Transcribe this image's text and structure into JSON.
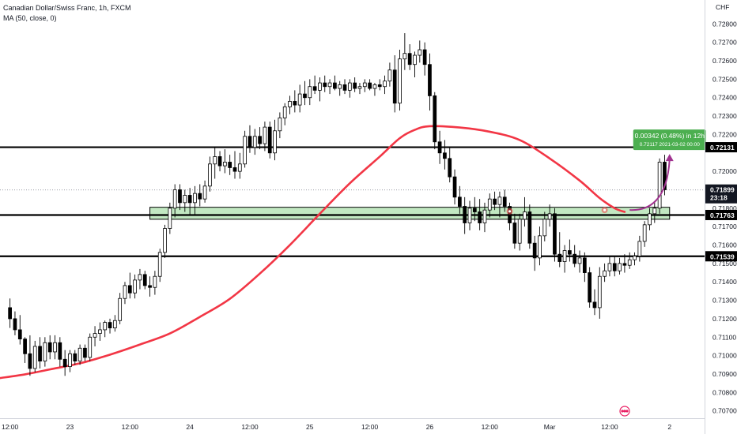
{
  "header": {
    "symbol_line": "Canadian Dollar/Swiss Franc, 1h, FXCM",
    "indicator_line": "MA (50, close, 0)"
  },
  "chart_data": {
    "type": "candlestick",
    "currency_label": "CHF",
    "ylim": [
      0.7066,
      0.7293
    ],
    "y_ticks": [
      "0.72800",
      "0.72700",
      "0.72600",
      "0.72500",
      "0.72400",
      "0.72300",
      "0.72200",
      "0.72000",
      "0.71800",
      "0.71700",
      "0.71600",
      "0.71500",
      "0.71400",
      "0.71300",
      "0.71200",
      "0.71100",
      "0.71000",
      "0.70900",
      "0.70800",
      "0.70700"
    ],
    "x_ticks": [
      {
        "label": "12:00",
        "x": 0
      },
      {
        "label": "23",
        "x": 12
      },
      {
        "label": "12:00",
        "x": 24
      },
      {
        "label": "24",
        "x": 36
      },
      {
        "label": "12:00",
        "x": 48
      },
      {
        "label": "25",
        "x": 60
      },
      {
        "label": "12:00",
        "x": 72
      },
      {
        "label": "26",
        "x": 84
      },
      {
        "label": "12:00",
        "x": 96
      },
      {
        "label": "Mar",
        "x": 108
      },
      {
        "label": "12:00",
        "x": 120
      },
      {
        "label": "2",
        "x": 132
      }
    ],
    "x_range": [
      -2,
      139
    ],
    "candles": [
      [
        0.7126,
        0.7131,
        0.7115,
        0.712
      ],
      [
        0.712,
        0.7124,
        0.7111,
        0.7114
      ],
      [
        0.7114,
        0.7122,
        0.7106,
        0.7109
      ],
      [
        0.7109,
        0.711,
        0.7096,
        0.7101
      ],
      [
        0.7101,
        0.7111,
        0.7089,
        0.7093
      ],
      [
        0.7093,
        0.7108,
        0.7091,
        0.7105
      ],
      [
        0.7105,
        0.711,
        0.7093,
        0.7097
      ],
      [
        0.7097,
        0.711,
        0.7094,
        0.7107
      ],
      [
        0.7107,
        0.7111,
        0.7098,
        0.7102
      ],
      [
        0.7102,
        0.7111,
        0.7098,
        0.7107
      ],
      [
        0.7107,
        0.711,
        0.7094,
        0.7098
      ],
      [
        0.7098,
        0.7103,
        0.7089,
        0.7094
      ],
      [
        0.7094,
        0.7103,
        0.7091,
        0.7101
      ],
      [
        0.7101,
        0.7103,
        0.7095,
        0.7097
      ],
      [
        0.7097,
        0.7106,
        0.7095,
        0.7104
      ],
      [
        0.7104,
        0.7106,
        0.7097,
        0.7099
      ],
      [
        0.7099,
        0.7112,
        0.7097,
        0.711
      ],
      [
        0.711,
        0.7116,
        0.7105,
        0.7112
      ],
      [
        0.7112,
        0.7118,
        0.7108,
        0.7114
      ],
      [
        0.7114,
        0.7119,
        0.711,
        0.7118
      ],
      [
        0.7118,
        0.712,
        0.7112,
        0.7115
      ],
      [
        0.7115,
        0.7122,
        0.7113,
        0.7119
      ],
      [
        0.7119,
        0.7134,
        0.7117,
        0.7131
      ],
      [
        0.7131,
        0.714,
        0.7128,
        0.7138
      ],
      [
        0.7138,
        0.7145,
        0.7131,
        0.7134
      ],
      [
        0.7134,
        0.7144,
        0.7131,
        0.7141
      ],
      [
        0.7141,
        0.7147,
        0.7136,
        0.7144
      ],
      [
        0.7144,
        0.7146,
        0.7136,
        0.7138
      ],
      [
        0.7138,
        0.7143,
        0.7132,
        0.7137
      ],
      [
        0.7137,
        0.7146,
        0.7133,
        0.7143
      ],
      [
        0.7143,
        0.7158,
        0.714,
        0.7156
      ],
      [
        0.7156,
        0.7171,
        0.7153,
        0.7169
      ],
      [
        0.7169,
        0.7183,
        0.7166,
        0.718
      ],
      [
        0.718,
        0.7193,
        0.7175,
        0.719
      ],
      [
        0.719,
        0.7193,
        0.7179,
        0.7183
      ],
      [
        0.7183,
        0.719,
        0.7178,
        0.7187
      ],
      [
        0.7187,
        0.7191,
        0.7176,
        0.7183
      ],
      [
        0.7183,
        0.7192,
        0.7176,
        0.7188
      ],
      [
        0.7188,
        0.7193,
        0.7181,
        0.7185
      ],
      [
        0.7185,
        0.7195,
        0.7183,
        0.7192
      ],
      [
        0.7192,
        0.7208,
        0.7189,
        0.7204
      ],
      [
        0.7204,
        0.7213,
        0.7196,
        0.7208
      ],
      [
        0.7208,
        0.7211,
        0.72,
        0.7203
      ],
      [
        0.7203,
        0.7212,
        0.7199,
        0.7205
      ],
      [
        0.7205,
        0.7209,
        0.7198,
        0.7202
      ],
      [
        0.7202,
        0.7211,
        0.7196,
        0.72
      ],
      [
        0.72,
        0.721,
        0.7196,
        0.7204
      ],
      [
        0.7204,
        0.7222,
        0.7202,
        0.7219
      ],
      [
        0.7219,
        0.7225,
        0.721,
        0.7213
      ],
      [
        0.7213,
        0.7223,
        0.7209,
        0.7219
      ],
      [
        0.7219,
        0.7224,
        0.7212,
        0.7215
      ],
      [
        0.7215,
        0.7227,
        0.7211,
        0.7224
      ],
      [
        0.7224,
        0.7227,
        0.7207,
        0.721
      ],
      [
        0.721,
        0.7228,
        0.7206,
        0.7222
      ],
      [
        0.7222,
        0.7232,
        0.7218,
        0.7229
      ],
      [
        0.7229,
        0.7237,
        0.7225,
        0.7235
      ],
      [
        0.7235,
        0.7241,
        0.7231,
        0.7238
      ],
      [
        0.7238,
        0.7244,
        0.7232,
        0.7236
      ],
      [
        0.7236,
        0.7247,
        0.7232,
        0.7242
      ],
      [
        0.7242,
        0.7249,
        0.7236,
        0.724
      ],
      [
        0.724,
        0.725,
        0.7236,
        0.7246
      ],
      [
        0.7246,
        0.7252,
        0.7242,
        0.7244
      ],
      [
        0.7244,
        0.7251,
        0.7238,
        0.7248
      ],
      [
        0.7248,
        0.7252,
        0.7243,
        0.7246
      ],
      [
        0.7246,
        0.725,
        0.7242,
        0.7248
      ],
      [
        0.7248,
        0.7252,
        0.7244,
        0.7245
      ],
      [
        0.7245,
        0.7249,
        0.7241,
        0.7247
      ],
      [
        0.7247,
        0.725,
        0.7242,
        0.7244
      ],
      [
        0.7244,
        0.725,
        0.724,
        0.7248
      ],
      [
        0.7248,
        0.7251,
        0.7243,
        0.7245
      ],
      [
        0.7245,
        0.7248,
        0.7242,
        0.7246
      ],
      [
        0.7246,
        0.725,
        0.7243,
        0.7248
      ],
      [
        0.7248,
        0.725,
        0.7244,
        0.7245
      ],
      [
        0.7245,
        0.7248,
        0.7241,
        0.7247
      ],
      [
        0.7247,
        0.725,
        0.7244,
        0.7246
      ],
      [
        0.7246,
        0.7252,
        0.7242,
        0.7249
      ],
      [
        0.7249,
        0.7259,
        0.7246,
        0.7255
      ],
      [
        0.7255,
        0.7263,
        0.7232,
        0.7237
      ],
      [
        0.7237,
        0.7266,
        0.7233,
        0.7261
      ],
      [
        0.7261,
        0.7275,
        0.7255,
        0.7264
      ],
      [
        0.7264,
        0.7269,
        0.7255,
        0.7258
      ],
      [
        0.7258,
        0.7265,
        0.7251,
        0.7263
      ],
      [
        0.7263,
        0.7271,
        0.7259,
        0.7266
      ],
      [
        0.7266,
        0.727,
        0.7252,
        0.7258
      ],
      [
        0.7258,
        0.7264,
        0.7233,
        0.7241
      ],
      [
        0.7241,
        0.7243,
        0.7212,
        0.7216
      ],
      [
        0.7216,
        0.7222,
        0.7204,
        0.721
      ],
      [
        0.721,
        0.7217,
        0.7201,
        0.7207
      ],
      [
        0.7207,
        0.7213,
        0.7194,
        0.7197
      ],
      [
        0.7197,
        0.7201,
        0.7182,
        0.7186
      ],
      [
        0.7186,
        0.7192,
        0.7177,
        0.7181
      ],
      [
        0.7181,
        0.7186,
        0.7166,
        0.7172
      ],
      [
        0.7172,
        0.7184,
        0.7168,
        0.718
      ],
      [
        0.718,
        0.7186,
        0.7173,
        0.7178
      ],
      [
        0.7178,
        0.7185,
        0.7168,
        0.7172
      ],
      [
        0.7172,
        0.7183,
        0.7167,
        0.7179
      ],
      [
        0.7179,
        0.7188,
        0.7175,
        0.7185
      ],
      [
        0.7185,
        0.7189,
        0.7179,
        0.7182
      ],
      [
        0.7182,
        0.7189,
        0.7175,
        0.7186
      ],
      [
        0.7186,
        0.719,
        0.7178,
        0.7181
      ],
      [
        0.7181,
        0.7183,
        0.7168,
        0.7172
      ],
      [
        0.7172,
        0.7177,
        0.7158,
        0.7161
      ],
      [
        0.7161,
        0.7177,
        0.7157,
        0.7174
      ],
      [
        0.7174,
        0.7186,
        0.717,
        0.7178
      ],
      [
        0.7178,
        0.7182,
        0.7158,
        0.7161
      ],
      [
        0.7161,
        0.7165,
        0.7146,
        0.7153
      ],
      [
        0.7153,
        0.717,
        0.7149,
        0.7165
      ],
      [
        0.7165,
        0.7178,
        0.7162,
        0.7174
      ],
      [
        0.7174,
        0.7182,
        0.717,
        0.7177
      ],
      [
        0.7177,
        0.718,
        0.7151,
        0.7155
      ],
      [
        0.7155,
        0.7167,
        0.7148,
        0.7151
      ],
      [
        0.7151,
        0.716,
        0.7145,
        0.7157
      ],
      [
        0.7157,
        0.7163,
        0.7151,
        0.7155
      ],
      [
        0.7155,
        0.716,
        0.7148,
        0.715
      ],
      [
        0.715,
        0.7157,
        0.7145,
        0.7153
      ],
      [
        0.7153,
        0.7156,
        0.714,
        0.7145
      ],
      [
        0.7145,
        0.7148,
        0.7126,
        0.7129
      ],
      [
        0.7129,
        0.7136,
        0.7122,
        0.7126
      ],
      [
        0.7126,
        0.7148,
        0.712,
        0.7143
      ],
      [
        0.7143,
        0.715,
        0.714,
        0.7146
      ],
      [
        0.7146,
        0.7154,
        0.7143,
        0.715
      ],
      [
        0.715,
        0.7154,
        0.7143,
        0.7146
      ],
      [
        0.7146,
        0.7153,
        0.7144,
        0.715
      ],
      [
        0.715,
        0.7155,
        0.7145,
        0.7149
      ],
      [
        0.7149,
        0.7156,
        0.7147,
        0.7152
      ],
      [
        0.7152,
        0.7156,
        0.7149,
        0.7154
      ],
      [
        0.7154,
        0.7165,
        0.7151,
        0.7162
      ],
      [
        0.7162,
        0.7173,
        0.7159,
        0.7171
      ],
      [
        0.7171,
        0.718,
        0.7168,
        0.7177
      ],
      [
        0.7177,
        0.7183,
        0.7172,
        0.718
      ],
      [
        0.718,
        0.7207,
        0.7177,
        0.7205
      ],
      [
        0.7205,
        0.7209,
        0.7187,
        0.719
      ]
    ],
    "ma_label": "MA (50, close, 0)",
    "ma_color": "#f23645",
    "ma_points": [
      [
        -2,
        0.70878
      ],
      [
        3,
        0.70898
      ],
      [
        8,
        0.70925
      ],
      [
        14,
        0.70958
      ],
      [
        20,
        0.71005
      ],
      [
        26,
        0.7106
      ],
      [
        32,
        0.7112
      ],
      [
        38,
        0.7121
      ],
      [
        44,
        0.71308
      ],
      [
        50,
        0.71445
      ],
      [
        56,
        0.716
      ],
      [
        62,
        0.7177
      ],
      [
        68,
        0.71935
      ],
      [
        74,
        0.7208
      ],
      [
        78,
        0.7218
      ],
      [
        81,
        0.72225
      ],
      [
        84,
        0.72245
      ],
      [
        90,
        0.72238
      ],
      [
        96,
        0.72215
      ],
      [
        102,
        0.7217
      ],
      [
        108,
        0.7207
      ],
      [
        114,
        0.7195
      ],
      [
        118,
        0.71855
      ],
      [
        121,
        0.718
      ],
      [
        123,
        0.7178
      ]
    ],
    "h_levels": [
      {
        "value": 0.72131,
        "label": "0.72131",
        "color": "#000000"
      },
      {
        "value": 0.71763,
        "label": "0.71763",
        "color": "#000000"
      },
      {
        "value": 0.71539,
        "label": "0.71539",
        "color": "#000000"
      }
    ],
    "zone": {
      "x_start": 28,
      "x_end": 132,
      "y_low": 0.7174,
      "y_high": 0.71805,
      "color": "#b7e4b7"
    },
    "last_price": {
      "value": 0.71899,
      "label": "0.71899",
      "countdown": "23:18",
      "color": "#131722"
    },
    "projection": {
      "from": [
        124,
        0.7179
      ],
      "to": [
        132,
        0.7209
      ],
      "color": "#a0338f",
      "measure_main": "0.00342 (0.48%) in 12h",
      "measure_sub": "0.72117   2021-03-02   00:00",
      "measure_bg": "#4caf50"
    },
    "markers": [
      {
        "x": 100,
        "y": 0.71783
      },
      {
        "x": 119,
        "y": 0.7179
      }
    ],
    "colors": {
      "bull_fill": "#ffffff",
      "bear_fill": "#000000",
      "candle_line": "#000000",
      "grid": "#eef0f3",
      "axis_bg": "#ffffff"
    }
  }
}
